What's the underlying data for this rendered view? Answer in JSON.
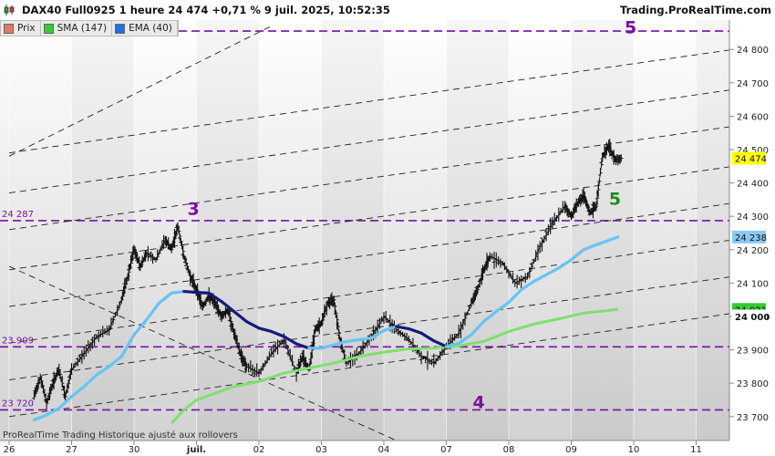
{
  "header": {
    "title": "DAX40 Full0925 1 heure 24 474 +0,71 % 9 juil. 2025, 10:52:35",
    "brand": "Trading.ProRealTime.com",
    "footer": "ProRealTime Trading  Historique ajusté aux rollovers"
  },
  "legend": [
    {
      "label": "Prix",
      "color": "#e07a5f"
    },
    {
      "label": "SMA (147)",
      "color": "#33cc33"
    },
    {
      "label": "EMA (40)",
      "color": "#1f6fe5"
    }
  ],
  "chart_data": {
    "type": "line",
    "title": "DAX40 Full0925 1 heure",
    "x_ticks": [
      "26",
      "27",
      "30",
      "juil.",
      "02",
      "03",
      "04",
      "07",
      "08",
      "09",
      "10",
      "11"
    ],
    "ylim": [
      23680,
      24870
    ],
    "y_ticks": [
      23700,
      23800,
      23900,
      24000,
      24100,
      24200,
      24300,
      24400,
      24500,
      24600,
      24700,
      24800
    ],
    "y_tick_labels": [
      "23 700",
      "23 800",
      "23 900",
      "24 000",
      "24 100",
      "24 200",
      "24 300",
      "24 400",
      "24 500",
      "24 600",
      "24 700",
      "24 800"
    ],
    "price_tags": [
      {
        "label": "24 474",
        "value": 24474,
        "color": "#ffff00"
      },
      {
        "label": "24 238",
        "value": 24238,
        "color": "#8cc8f5"
      },
      {
        "label": "24 021",
        "value": 24021,
        "color": "#33cc33"
      },
      {
        "label": "24 000",
        "value": 24000,
        "color": "#ffffff"
      }
    ],
    "horizontal_levels": [
      {
        "value": 24855,
        "label": ""
      },
      {
        "value": 24287,
        "label": "24 287"
      },
      {
        "value": 23909,
        "label": "23 909"
      },
      {
        "value": 23720,
        "label": "23 720"
      }
    ],
    "wave_labels": [
      {
        "text": "3",
        "color": "#7a0fa8",
        "x": 2.95,
        "y": 24305
      },
      {
        "text": "4",
        "color": "#7a0fa8",
        "x": 7.52,
        "y": 23725
      },
      {
        "text": "5",
        "color": "#7a0fa8",
        "x": 9.95,
        "y": 24848
      },
      {
        "text": "5",
        "color": "#1e8a1e",
        "x": 9.7,
        "y": 24335
      }
    ],
    "channel_lines": [
      {
        "x": [
          0,
          11.6
        ],
        "y": [
          23700,
          24010
        ]
      },
      {
        "x": [
          0,
          11.6
        ],
        "y": [
          23810,
          24120
        ]
      },
      {
        "x": [
          0,
          11.6
        ],
        "y": [
          23920,
          24230
        ]
      },
      {
        "x": [
          0,
          11.6
        ],
        "y": [
          24030,
          24340
        ]
      },
      {
        "x": [
          0,
          11.6
        ],
        "y": [
          24140,
          24450
        ]
      },
      {
        "x": [
          0,
          11.6
        ],
        "y": [
          24260,
          24570
        ]
      },
      {
        "x": [
          0,
          11.6
        ],
        "y": [
          24370,
          24680
        ]
      },
      {
        "x": [
          0,
          11.6
        ],
        "y": [
          24490,
          24800
        ]
      },
      {
        "x": [
          0,
          4.2
        ],
        "y": [
          24480,
          24870
        ]
      },
      {
        "x": [
          0,
          6.3
        ],
        "y": [
          24150,
          23620
        ]
      }
    ],
    "series": [
      {
        "name": "Prix",
        "color": "#111111",
        "x": [
          0.4,
          0.5,
          0.6,
          0.7,
          0.8,
          0.9,
          1.0,
          1.2,
          1.4,
          1.6,
          1.8,
          1.9,
          2.0,
          2.1,
          2.2,
          2.35,
          2.5,
          2.6,
          2.7,
          2.8,
          2.9,
          3.0,
          3.1,
          3.2,
          3.3,
          3.4,
          3.5,
          3.6,
          3.7,
          3.8,
          4.0,
          4.2,
          4.4,
          4.6,
          4.7,
          4.8,
          4.9,
          5.0,
          5.1,
          5.2,
          5.3,
          5.4,
          5.6,
          5.8,
          6.0,
          6.2,
          6.4,
          6.6,
          6.8,
          7.0,
          7.2,
          7.4,
          7.5,
          7.6,
          7.7,
          7.9,
          8.1,
          8.3,
          8.5,
          8.7,
          8.9,
          9.0,
          9.1,
          9.2,
          9.3,
          9.4,
          9.5,
          9.6,
          9.7,
          9.8
        ],
        "y": [
          23760,
          23820,
          23740,
          23800,
          23840,
          23760,
          23840,
          23890,
          23940,
          23960,
          24050,
          24120,
          24200,
          24150,
          24190,
          24170,
          24230,
          24200,
          24270,
          24180,
          24120,
          24080,
          24030,
          24060,
          24040,
          24000,
          24020,
          23950,
          23890,
          23850,
          23830,
          23890,
          23930,
          23830,
          23880,
          23840,
          23960,
          23980,
          24040,
          24050,
          23930,
          23860,
          23890,
          23940,
          24000,
          23960,
          23930,
          23880,
          23860,
          23910,
          23950,
          24040,
          24080,
          24140,
          24180,
          24160,
          24100,
          24120,
          24210,
          24280,
          24330,
          24300,
          24340,
          24360,
          24310,
          24330,
          24480,
          24510,
          24470,
          24474
        ]
      },
      {
        "name": "SMA (147)",
        "color": "#33cc33",
        "x": [
          2.6,
          2.8,
          3.0,
          3.3,
          3.6,
          4.0,
          4.4,
          4.8,
          5.2,
          5.6,
          6.0,
          6.4,
          6.8,
          7.2,
          7.6,
          8.0,
          8.4,
          8.8,
          9.2,
          9.6,
          9.75
        ],
        "y": [
          23680,
          23720,
          23750,
          23770,
          23790,
          23805,
          23830,
          23845,
          23860,
          23880,
          23893,
          23903,
          23905,
          23912,
          23925,
          23955,
          23977,
          23993,
          24010,
          24018,
          24021
        ]
      },
      {
        "name": "EMA (40)",
        "color": "#1f6fe5",
        "x": [
          0.4,
          0.6,
          0.8,
          1.0,
          1.2,
          1.4,
          1.6,
          1.8,
          2.0,
          2.2,
          2.4,
          2.6,
          2.8,
          3.0,
          3.2,
          3.4,
          3.6,
          3.8,
          4.0,
          4.2,
          4.4,
          4.6,
          4.8,
          5.0,
          5.2,
          5.4,
          5.6,
          5.8,
          6.0,
          6.2,
          6.4,
          6.6,
          6.8,
          7.0,
          7.2,
          7.4,
          7.6,
          7.8,
          8.0,
          8.2,
          8.4,
          8.6,
          8.8,
          9.0,
          9.2,
          9.4,
          9.6,
          9.75
        ],
        "y": [
          23690,
          23705,
          23725,
          23760,
          23790,
          23825,
          23850,
          23880,
          23945,
          23990,
          24040,
          24070,
          24075,
          24072,
          24070,
          24045,
          24015,
          23985,
          23965,
          23955,
          23940,
          23918,
          23905,
          23905,
          23915,
          23925,
          23930,
          23935,
          23958,
          23970,
          23963,
          23950,
          23927,
          23910,
          23920,
          23945,
          23985,
          24015,
          24042,
          24080,
          24105,
          24125,
          24145,
          24170,
          24200,
          24215,
          24228,
          24238
        ]
      }
    ]
  }
}
